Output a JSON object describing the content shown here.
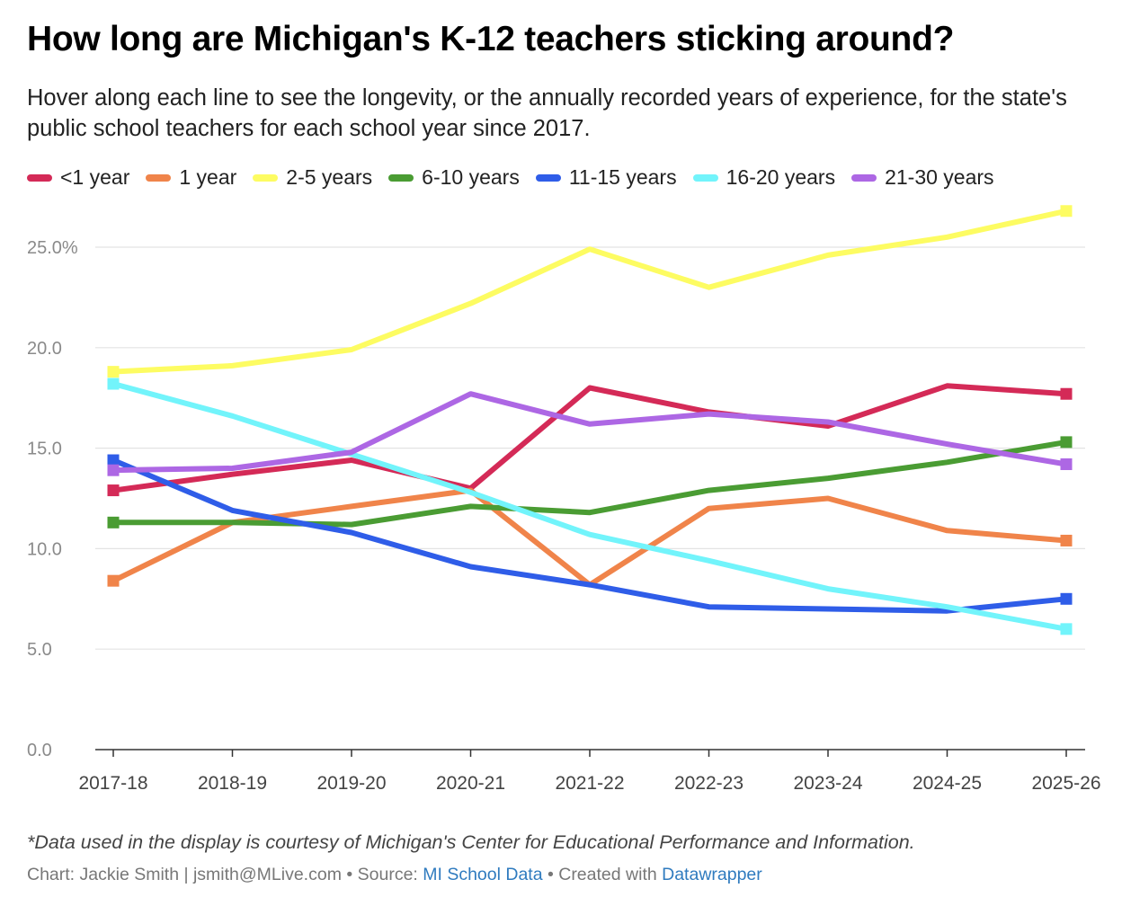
{
  "title": "How long are Michigan's K-12 teachers sticking around?",
  "subtitle": "Hover along each line to see the longevity, or the annually recorded years of experience, for the state's public school teachers for each school year since 2017.",
  "footer": {
    "note": "*Data used in the display is courtesy of Michigan's Center for Educational Performance and Information.",
    "chart_credit": "Chart: Jackie Smith | jsmith@MLive.com",
    "separator": "•",
    "source_label": "Source:",
    "source_link": "MI School Data",
    "created_label": "Created with",
    "created_link": "Datawrapper"
  },
  "chart_data": {
    "type": "line",
    "title": "How long are Michigan's K-12 teachers sticking around?",
    "xlabel": "",
    "ylabel": "",
    "ylim": [
      0,
      25
    ],
    "y_ticks": [
      0,
      5,
      10,
      15,
      20,
      25
    ],
    "y_tick_labels": [
      "0.0",
      "5.0",
      "10.0",
      "15.0",
      "20.0",
      "25.0%"
    ],
    "grid": true,
    "legend_position": "top-left",
    "categories": [
      "2017-18",
      "2018-19",
      "2019-20",
      "2020-21",
      "2021-22",
      "2022-23",
      "2023-24",
      "2024-25",
      "2025-26"
    ],
    "series": [
      {
        "name": "<1 year",
        "color": "#d42a57",
        "values": [
          12.9,
          13.7,
          14.4,
          13.0,
          18.0,
          16.8,
          16.1,
          18.1,
          17.7
        ]
      },
      {
        "name": "1 year",
        "color": "#f0844a",
        "values": [
          8.4,
          11.3,
          12.1,
          12.9,
          8.2,
          12.0,
          12.5,
          10.9,
          10.4
        ]
      },
      {
        "name": "2-5 years",
        "color": "#fdfc62",
        "values": [
          18.8,
          19.1,
          19.9,
          22.2,
          24.9,
          23.0,
          24.6,
          25.5,
          26.8
        ]
      },
      {
        "name": "6-10 years",
        "color": "#4a9c33",
        "values": [
          11.3,
          11.3,
          11.2,
          12.1,
          11.8,
          12.9,
          13.5,
          14.3,
          15.3
        ]
      },
      {
        "name": "11-15 years",
        "color": "#2f5de8",
        "values": [
          14.4,
          11.9,
          10.8,
          9.1,
          8.2,
          7.1,
          7.0,
          6.9,
          7.5
        ]
      },
      {
        "name": "16-20 years",
        "color": "#72f4fb",
        "values": [
          18.2,
          16.6,
          14.7,
          12.8,
          10.7,
          9.4,
          8.0,
          7.1,
          6.0
        ]
      },
      {
        "name": "21-30 years",
        "color": "#ad67e4",
        "values": [
          13.9,
          14.0,
          14.8,
          17.7,
          16.2,
          16.7,
          16.3,
          15.2,
          14.2
        ]
      }
    ]
  }
}
